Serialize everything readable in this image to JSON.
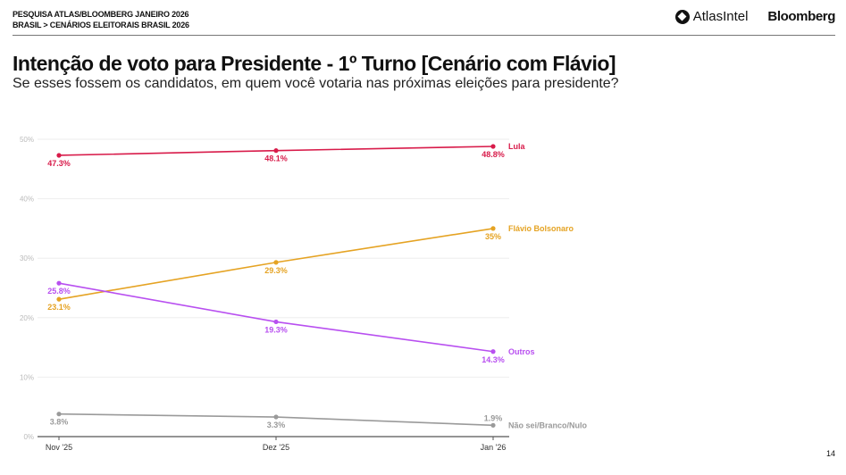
{
  "header": {
    "line1": "PESQUISA ATLAS/BLOOMBERG JANEIRO 2026",
    "line2": "BRASIL > CENÁRIOS ELEITORAIS BRASIL 2026",
    "logo_atlas": "AtlasIntel",
    "logo_bloomberg": "Bloomberg"
  },
  "title": "Intenção de voto para Presidente - 1º Turno [Cenário com Flávio]",
  "subtitle": "Se esses fossem os candidatos, em quem você votaria nas próximas eleições para presidente?",
  "page_number": "14",
  "chart_data": {
    "type": "line",
    "categories": [
      "Nov '25",
      "Dez '25",
      "Jan '26"
    ],
    "ylim": [
      0,
      50
    ],
    "yticks": [
      0,
      10,
      20,
      30,
      40,
      50
    ],
    "ytick_labels": [
      "0%",
      "10%",
      "20%",
      "30%",
      "40%",
      "50%"
    ],
    "grid": true,
    "legend": "direct labels at line ends",
    "series": [
      {
        "name": "Lula",
        "color": "#d81b4a",
        "values": [
          47.3,
          48.1,
          48.8
        ],
        "labels": [
          "47.3%",
          "48.1%",
          "48.8%"
        ]
      },
      {
        "name": "Flávio Bolsonaro",
        "color": "#e5a323",
        "values": [
          23.1,
          29.3,
          35
        ],
        "labels": [
          "23.1%",
          "29.3%",
          "35%"
        ]
      },
      {
        "name": "Outros",
        "color": "#b84ff0",
        "values": [
          25.8,
          19.3,
          14.3
        ],
        "labels": [
          "25.8%",
          "19.3%",
          "14.3%"
        ]
      },
      {
        "name": "Não sei/Branco/Nulo",
        "color": "#9a9a9a",
        "values": [
          3.8,
          3.3,
          1.9
        ],
        "labels": [
          "3.8%",
          "3.3%",
          "1.9%"
        ]
      }
    ]
  }
}
